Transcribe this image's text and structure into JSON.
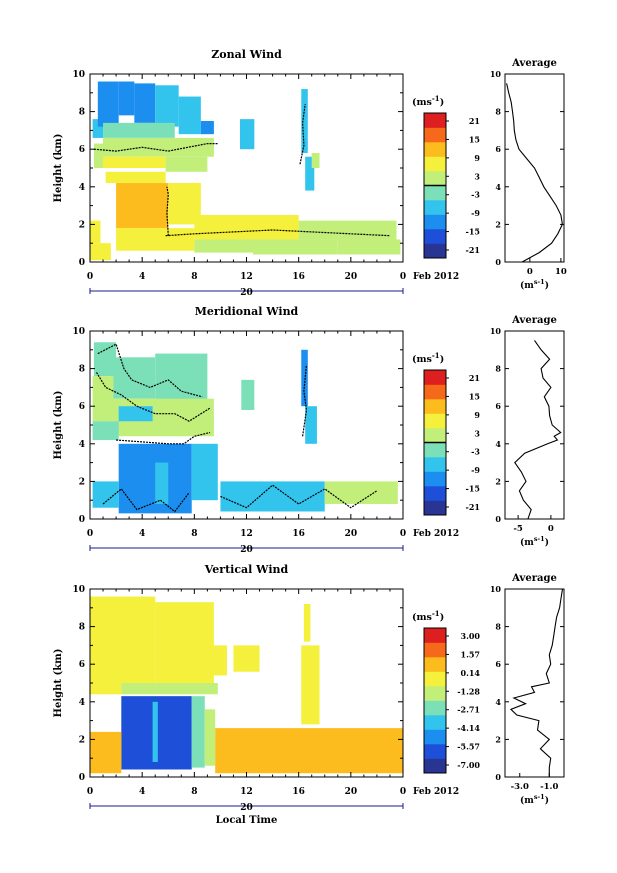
{
  "panels": [
    {
      "title": "Zonal Wind",
      "ylabel": "Height (km)",
      "yticks": [
        "0",
        "2",
        "4",
        "6",
        "8",
        "10"
      ],
      "xticks": [
        "0",
        "4",
        "8",
        "12",
        "16",
        "20",
        "0"
      ],
      "date_day": "20",
      "date_month": "Feb 2012",
      "cbar_unit": "(ms",
      "cbar_unit_sup": "-1",
      "cbar_unit_close": ")",
      "cbar_ticks": [
        "21",
        "15",
        "9",
        "3",
        "-3",
        "-9",
        "-15",
        "-21"
      ],
      "avg_title": "Average",
      "avg_yticks": [
        "0",
        "2",
        "4",
        "6",
        "8",
        "10"
      ],
      "avg_xticks": [
        "0",
        "10"
      ],
      "avg_unit": "(m",
      "avg_unit_sup": "s-1",
      "avg_unit_close": ")"
    },
    {
      "title": "Meridional Wind",
      "ylabel": "Height (km)",
      "yticks": [
        "0",
        "2",
        "4",
        "6",
        "8",
        "10"
      ],
      "xticks": [
        "0",
        "4",
        "8",
        "12",
        "16",
        "20",
        "0"
      ],
      "date_day": "20",
      "date_month": "Feb 2012",
      "cbar_unit": "(ms",
      "cbar_unit_sup": "-1",
      "cbar_unit_close": ")",
      "cbar_ticks": [
        "21",
        "15",
        "9",
        "3",
        "-3",
        "-9",
        "-15",
        "-21"
      ],
      "avg_title": "Average",
      "avg_yticks": [
        "0",
        "2",
        "4",
        "6",
        "8",
        "10"
      ],
      "avg_xticks": [
        "-5",
        "0"
      ],
      "avg_unit": "(m",
      "avg_unit_sup": "s-1",
      "avg_unit_close": ")"
    },
    {
      "title": "Vertical Wind",
      "ylabel": "Height (km)",
      "yticks": [
        "0",
        "2",
        "4",
        "6",
        "8",
        "10"
      ],
      "xticks": [
        "0",
        "4",
        "8",
        "12",
        "16",
        "20",
        "0"
      ],
      "date_day": "20",
      "date_month": "Feb 2012",
      "xlabel": "Local Time",
      "cbar_unit": "(ms",
      "cbar_unit_sup": "-1",
      "cbar_unit_close": ")",
      "cbar_ticks": [
        "3.00",
        "1.57",
        "0.14",
        "-1.28",
        "-2.71",
        "-4.14",
        "-5.57",
        "-7.00"
      ],
      "avg_title": "Average",
      "avg_yticks": [
        "0",
        "2",
        "4",
        "6",
        "8",
        "10"
      ],
      "avg_xticks": [
        "-3.0",
        "-1.0"
      ],
      "avg_unit": "(m",
      "avg_unit_sup": "s-1",
      "avg_unit_close": ")"
    }
  ],
  "chart_data": [
    {
      "type": "heatmap",
      "title": "Zonal Wind",
      "xlabel": "",
      "ylabel": "Height (km)",
      "xlim": [
        0,
        24
      ],
      "ylim": [
        0,
        10
      ],
      "clim": [
        -24,
        24
      ],
      "contour_level": 0,
      "colormap": [
        "#283593",
        "#1e4fd8",
        "#1c8ef0",
        "#33c4ee",
        "#7be0b8",
        "#c2ee7a",
        "#f4f03c",
        "#fcbc1e",
        "#f7691a",
        "#dd1f1f"
      ],
      "field": [
        {
          "t0": 0.0,
          "t1": 0.8,
          "h0": 1.0,
          "h1": 2.2,
          "v": 9
        },
        {
          "t0": 0.0,
          "t1": 1.6,
          "h0": 0.1,
          "h1": 1.0,
          "v": 6
        },
        {
          "t0": 0.3,
          "t1": 1.2,
          "h0": 5.0,
          "h1": 6.3,
          "v": 4
        },
        {
          "t0": 0.2,
          "t1": 1.0,
          "h0": 6.6,
          "h1": 7.6,
          "v": -6
        },
        {
          "t0": 0.6,
          "t1": 2.2,
          "h0": 7.2,
          "h1": 9.6,
          "v": -10
        },
        {
          "t0": 2.2,
          "t1": 3.4,
          "h0": 7.8,
          "h1": 9.6,
          "v": -14
        },
        {
          "t0": 3.4,
          "t1": 5.0,
          "h0": 7.4,
          "h1": 9.5,
          "v": -10
        },
        {
          "t0": 5.0,
          "t1": 6.8,
          "h0": 7.2,
          "h1": 9.4,
          "v": -6
        },
        {
          "t0": 6.8,
          "t1": 8.5,
          "h0": 6.8,
          "h1": 8.8,
          "v": -6
        },
        {
          "t0": 8.5,
          "t1": 9.5,
          "h0": 6.8,
          "h1": 7.5,
          "v": -12
        },
        {
          "t0": 1.0,
          "t1": 6.5,
          "h0": 6.6,
          "h1": 7.4,
          "v": -2
        },
        {
          "t0": 1.0,
          "t1": 9.5,
          "h0": 5.6,
          "h1": 6.6,
          "v": 1
        },
        {
          "t0": 1.0,
          "t1": 5.8,
          "h0": 5.0,
          "h1": 5.6,
          "v": 5
        },
        {
          "t0": 5.8,
          "t1": 9.0,
          "h0": 4.8,
          "h1": 5.6,
          "v": 3
        },
        {
          "t0": 1.2,
          "t1": 5.8,
          "h0": 4.2,
          "h1": 4.8,
          "v": 8
        },
        {
          "t0": 2.0,
          "t1": 6.0,
          "h0": 1.8,
          "h1": 4.2,
          "v": 13
        },
        {
          "t0": 6.0,
          "t1": 8.5,
          "h0": 2.0,
          "h1": 4.2,
          "v": 9
        },
        {
          "t0": 2.0,
          "t1": 8.0,
          "h0": 0.6,
          "h1": 1.8,
          "v": 6
        },
        {
          "t0": 8.0,
          "t1": 16.0,
          "h0": 1.2,
          "h1": 2.5,
          "v": 5
        },
        {
          "t0": 8.0,
          "t1": 12.5,
          "h0": 0.5,
          "h1": 1.2,
          "v": 4
        },
        {
          "t0": 12.5,
          "t1": 19.0,
          "h0": 0.4,
          "h1": 1.2,
          "v": 3
        },
        {
          "t0": 16.0,
          "t1": 23.5,
          "h0": 1.2,
          "h1": 2.2,
          "v": 2
        },
        {
          "t0": 19.0,
          "t1": 23.8,
          "h0": 0.4,
          "h1": 1.2,
          "v": 1
        },
        {
          "t0": 11.5,
          "t1": 12.6,
          "h0": 6.0,
          "h1": 7.6,
          "v": -6
        },
        {
          "t0": 16.2,
          "t1": 16.7,
          "h0": 5.8,
          "h1": 9.2,
          "v": -8
        },
        {
          "t0": 16.5,
          "t1": 17.2,
          "h0": 3.8,
          "h1": 5.6,
          "v": -5
        },
        {
          "t0": 17.0,
          "t1": 17.6,
          "h0": 5.0,
          "h1": 5.8,
          "v": 4
        }
      ],
      "contours": [
        [
          [
            0.3,
            6.0
          ],
          [
            2.0,
            5.9
          ],
          [
            4.0,
            6.1
          ],
          [
            6.0,
            5.9
          ],
          [
            7.5,
            6.1
          ],
          [
            9.0,
            6.3
          ],
          [
            9.8,
            6.3
          ]
        ],
        [
          [
            5.8,
            1.4
          ],
          [
            8.0,
            1.5
          ],
          [
            11.0,
            1.6
          ],
          [
            14.0,
            1.7
          ],
          [
            17.0,
            1.6
          ],
          [
            20.0,
            1.5
          ],
          [
            23.0,
            1.4
          ]
        ],
        [
          [
            6.0,
            1.4
          ],
          [
            5.9,
            2.6
          ],
          [
            6.0,
            3.6
          ],
          [
            5.9,
            4.0
          ]
        ],
        [
          [
            16.1,
            5.2
          ],
          [
            16.4,
            6.2
          ],
          [
            16.3,
            7.4
          ],
          [
            16.5,
            8.4
          ]
        ]
      ],
      "average_profile": {
        "xlim": [
          -8,
          11
        ],
        "height_km": [
          0.0,
          0.5,
          1.0,
          1.5,
          2.0,
          2.5,
          3.0,
          3.5,
          4.0,
          4.5,
          5.0,
          5.5,
          6.0,
          6.5,
          7.0,
          7.5,
          8.0,
          8.5,
          9.0,
          9.5
        ],
        "value": [
          -2.5,
          3.0,
          7.0,
          9.0,
          10.5,
          10.0,
          8.5,
          6.5,
          4.5,
          3.0,
          1.5,
          -1.0,
          -3.5,
          -4.5,
          -5.0,
          -5.2,
          -5.6,
          -6.0,
          -6.8,
          -7.5
        ]
      }
    },
    {
      "type": "heatmap",
      "title": "Meridional Wind",
      "xlabel": "",
      "ylabel": "Height (km)",
      "xlim": [
        0,
        24
      ],
      "ylim": [
        0,
        10
      ],
      "clim": [
        -24,
        24
      ],
      "contour_level": 0,
      "colormap": [
        "#283593",
        "#1e4fd8",
        "#1c8ef0",
        "#33c4ee",
        "#7be0b8",
        "#c2ee7a",
        "#f4f03c",
        "#fcbc1e",
        "#f7691a",
        "#dd1f1f"
      ],
      "field": [
        {
          "t0": 0.3,
          "t1": 2.0,
          "h0": 7.6,
          "h1": 9.4,
          "v": -4
        },
        {
          "t0": 0.2,
          "t1": 1.8,
          "h0": 5.2,
          "h1": 7.6,
          "v": 1
        },
        {
          "t0": 1.8,
          "t1": 5.0,
          "h0": 6.4,
          "h1": 8.6,
          "v": -2
        },
        {
          "t0": 5.0,
          "t1": 9.0,
          "h0": 6.2,
          "h1": 8.8,
          "v": -3
        },
        {
          "t0": 1.8,
          "t1": 9.5,
          "h0": 4.4,
          "h1": 6.4,
          "v": 0
        },
        {
          "t0": 2.2,
          "t1": 4.8,
          "h0": 5.2,
          "h1": 6.0,
          "v": -6
        },
        {
          "t0": 0.2,
          "t1": 2.2,
          "h0": 4.2,
          "h1": 5.2,
          "v": -2
        },
        {
          "t0": 2.2,
          "t1": 7.8,
          "h0": 0.3,
          "h1": 4.0,
          "v": -14
        },
        {
          "t0": 5.0,
          "t1": 6.0,
          "h0": 0.8,
          "h1": 3.0,
          "v": -8
        },
        {
          "t0": 0.2,
          "t1": 2.2,
          "h0": 0.6,
          "h1": 2.0,
          "v": -9
        },
        {
          "t0": 7.8,
          "t1": 9.8,
          "h0": 1.0,
          "h1": 4.0,
          "v": -9
        },
        {
          "t0": 10.0,
          "t1": 18.0,
          "h0": 0.4,
          "h1": 2.0,
          "v": -7
        },
        {
          "t0": 18.0,
          "t1": 23.6,
          "h0": 0.8,
          "h1": 2.0,
          "v": 2
        },
        {
          "t0": 11.6,
          "t1": 12.6,
          "h0": 5.8,
          "h1": 7.4,
          "v": -3
        },
        {
          "t0": 16.2,
          "t1": 16.7,
          "h0": 6.0,
          "h1": 9.0,
          "v": -12
        },
        {
          "t0": 16.5,
          "t1": 17.4,
          "h0": 4.0,
          "h1": 6.0,
          "v": -7
        }
      ],
      "contours": [
        [
          [
            0.6,
            8.8
          ],
          [
            2.0,
            9.3
          ],
          [
            2.6,
            8.0
          ],
          [
            3.2,
            7.4
          ],
          [
            4.6,
            7.0
          ],
          [
            6.0,
            7.4
          ],
          [
            7.0,
            6.8
          ],
          [
            8.6,
            6.5
          ]
        ],
        [
          [
            0.5,
            7.8
          ],
          [
            1.2,
            7.0
          ],
          [
            2.4,
            6.6
          ],
          [
            3.6,
            6.0
          ],
          [
            5.0,
            5.6
          ],
          [
            6.5,
            5.6
          ],
          [
            7.6,
            5.2
          ],
          [
            9.2,
            5.9
          ]
        ],
        [
          [
            2.0,
            4.2
          ],
          [
            4.0,
            4.1
          ],
          [
            6.0,
            4.0
          ],
          [
            7.2,
            4.0
          ],
          [
            8.0,
            4.4
          ],
          [
            9.2,
            4.6
          ]
        ],
        [
          [
            1.0,
            0.8
          ],
          [
            2.4,
            1.6
          ],
          [
            3.6,
            0.5
          ],
          [
            5.4,
            1.0
          ],
          [
            6.5,
            0.4
          ],
          [
            7.6,
            1.4
          ]
        ],
        [
          [
            10.0,
            1.2
          ],
          [
            12.0,
            0.6
          ],
          [
            14.0,
            1.8
          ],
          [
            16.0,
            0.8
          ],
          [
            18.0,
            1.6
          ],
          [
            20.0,
            0.6
          ],
          [
            22.0,
            1.5
          ]
        ],
        [
          [
            16.3,
            4.4
          ],
          [
            16.6,
            5.8
          ],
          [
            16.4,
            6.8
          ],
          [
            16.6,
            8.2
          ]
        ]
      ],
      "average_profile": {
        "xlim": [
          -7,
          2
        ],
        "height_km": [
          0.0,
          0.5,
          1.0,
          1.5,
          2.0,
          2.5,
          3.0,
          3.5,
          4.0,
          4.2,
          4.4,
          4.6,
          5.0,
          5.5,
          6.0,
          6.5,
          7.0,
          7.5,
          8.0,
          8.5,
          9.0,
          9.5
        ],
        "value": [
          -3.5,
          -3.0,
          -4.2,
          -4.8,
          -3.8,
          -4.5,
          -5.5,
          -4.0,
          -0.5,
          1.0,
          0.5,
          1.5,
          0.2,
          -0.2,
          -0.3,
          -1.0,
          0.0,
          -1.2,
          -1.5,
          -0.2,
          -1.5,
          -2.5
        ]
      }
    },
    {
      "type": "heatmap",
      "title": "Vertical Wind",
      "xlabel": "Local Time",
      "ylabel": "Height (km)",
      "xlim": [
        0,
        24
      ],
      "ylim": [
        0,
        10
      ],
      "clim": [
        -7.0,
        3.0
      ],
      "colormap": [
        "#283593",
        "#1e4fd8",
        "#1c8ef0",
        "#33c4ee",
        "#7be0b8",
        "#c2ee7a",
        "#f4f03c",
        "#fcbc1e",
        "#f7691a",
        "#dd1f1f"
      ],
      "field": [
        {
          "t0": 0.0,
          "t1": 5.0,
          "h0": 5.0,
          "h1": 9.6,
          "v": -0.4
        },
        {
          "t0": 5.0,
          "t1": 9.5,
          "h0": 5.0,
          "h1": 9.3,
          "v": -0.7
        },
        {
          "t0": 9.5,
          "t1": 10.5,
          "h0": 5.4,
          "h1": 7.0,
          "v": -0.5
        },
        {
          "t0": 0.0,
          "t1": 2.4,
          "h0": 4.4,
          "h1": 5.0,
          "v": -0.4
        },
        {
          "t0": 2.4,
          "t1": 9.8,
          "h0": 4.4,
          "h1": 5.0,
          "v": -1.3
        },
        {
          "t0": 2.4,
          "t1": 7.8,
          "h0": 0.4,
          "h1": 4.3,
          "v": -6.0
        },
        {
          "t0": 4.8,
          "t1": 5.2,
          "h0": 0.8,
          "h1": 4.0,
          "v": -3.4
        },
        {
          "t0": 7.8,
          "t1": 8.8,
          "h0": 0.5,
          "h1": 4.3,
          "v": -3.0
        },
        {
          "t0": 8.8,
          "t1": 9.6,
          "h0": 0.6,
          "h1": 3.6,
          "v": -1.6
        },
        {
          "t0": 0.0,
          "t1": 2.4,
          "h0": 0.2,
          "h1": 2.4,
          "v": 0.6
        },
        {
          "t0": 9.6,
          "t1": 24.0,
          "h0": 0.2,
          "h1": 2.6,
          "v": 0.4
        },
        {
          "t0": 11.0,
          "t1": 13.0,
          "h0": 5.6,
          "h1": 7.0,
          "v": -0.8
        },
        {
          "t0": 16.4,
          "t1": 16.9,
          "h0": 7.2,
          "h1": 9.2,
          "v": -1.0
        },
        {
          "t0": 16.2,
          "t1": 17.6,
          "h0": 2.8,
          "h1": 7.0,
          "v": -0.9
        }
      ],
      "contours": [],
      "average_profile": {
        "xlim": [
          -4,
          0
        ],
        "height_km": [
          0.0,
          0.5,
          1.0,
          1.5,
          2.0,
          2.5,
          3.0,
          3.3,
          3.6,
          3.9,
          4.2,
          4.5,
          4.8,
          5.0,
          5.5,
          6.0,
          6.5,
          7.0,
          7.5,
          8.0,
          8.5,
          9.0,
          9.5,
          10.0
        ],
        "value": [
          -1.0,
          -1.0,
          -0.9,
          -1.6,
          -1.0,
          -1.8,
          -1.7,
          -3.2,
          -3.6,
          -2.6,
          -3.4,
          -2.0,
          -2.2,
          -1.0,
          -1.2,
          -0.9,
          -1.0,
          -0.8,
          -0.7,
          -0.6,
          -0.5,
          -0.3,
          -0.2,
          -0.1
        ]
      }
    }
  ]
}
